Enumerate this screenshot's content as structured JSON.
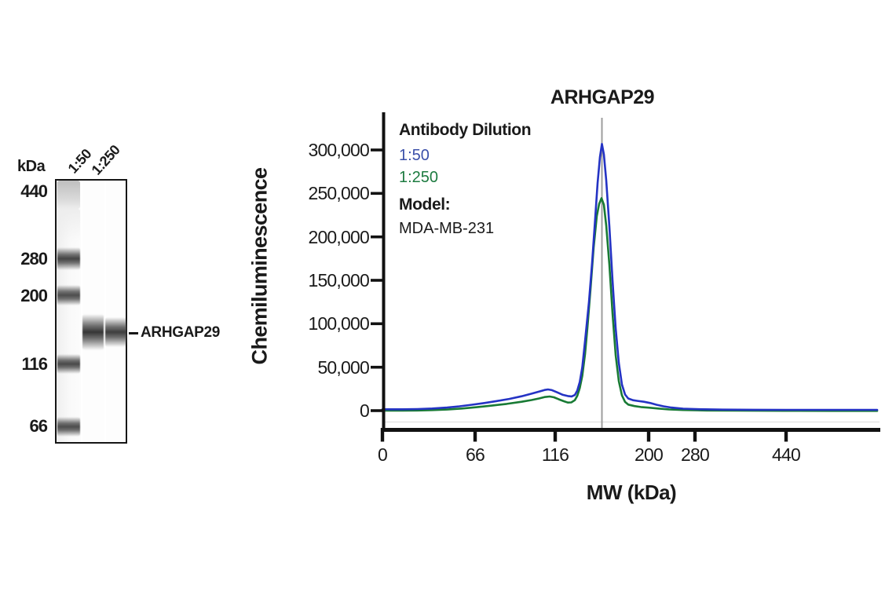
{
  "blot": {
    "kda_label": "kDa",
    "markers": [
      "440",
      "280",
      "200",
      "116",
      "66"
    ],
    "lanes": [
      "1:50",
      "1:250"
    ],
    "band_label": "ARHGAP29"
  },
  "chart": {
    "title": "ARHGAP29",
    "ylabel": "Chemiluminescence",
    "xlabel": "MW (kDa)",
    "y_tick_labels": [
      "300,000",
      "250,000",
      "200,000",
      "150,000",
      "100,000",
      "50,000",
      "0"
    ],
    "x_tick_labels": [
      "0",
      "66",
      "116",
      "200",
      "280",
      "440"
    ],
    "legend": {
      "heading": "Antibody Dilution",
      "items": [
        {
          "label": "1:50",
          "color": "#3a4fa9"
        },
        {
          "label": "1:250",
          "color": "#1d7b40"
        }
      ],
      "model_heading": "Model:",
      "model_value": "MDA-MB-231"
    }
  },
  "chart_data": {
    "type": "line",
    "title": "ARHGAP29",
    "xlabel": "MW (kDa)",
    "ylabel": "Chemiluminescence",
    "ylim": [
      0,
      330000
    ],
    "y_ticks": [
      0,
      50000,
      100000,
      150000,
      200000,
      250000,
      300000
    ],
    "x_axis": {
      "scale": "nonlinear-migration",
      "ticks": [
        {
          "label": "0",
          "pos": 0.0
        },
        {
          "label": "66",
          "pos": 0.186
        },
        {
          "label": "116",
          "pos": 0.348
        },
        {
          "label": "200",
          "pos": 0.536
        },
        {
          "label": "280",
          "pos": 0.629
        },
        {
          "label": "440",
          "pos": 0.812
        }
      ]
    },
    "peak_marker": {
      "pos": 0.4415,
      "kda_approx": 150
    },
    "series": [
      {
        "id": "d250",
        "name": "1:250",
        "color": "#187a34",
        "peak_value": 244000,
        "points": [
          [
            0.0,
            0
          ],
          [
            0.04,
            0
          ],
          [
            0.07,
            200
          ],
          [
            0.1,
            600
          ],
          [
            0.13,
            1300
          ],
          [
            0.16,
            2400
          ],
          [
            0.19,
            4000
          ],
          [
            0.22,
            5800
          ],
          [
            0.25,
            7800
          ],
          [
            0.28,
            10200
          ],
          [
            0.3,
            12200
          ],
          [
            0.315,
            14000
          ],
          [
            0.326,
            15600
          ],
          [
            0.3365,
            16300
          ],
          [
            0.345,
            15400
          ],
          [
            0.355,
            13000
          ],
          [
            0.365,
            10800
          ],
          [
            0.3729,
            9300
          ],
          [
            0.38,
            9500
          ],
          [
            0.387,
            12000
          ],
          [
            0.392,
            17000
          ],
          [
            0.397,
            26000
          ],
          [
            0.402,
            40000
          ],
          [
            0.4076,
            65000
          ],
          [
            0.4123,
            95000
          ],
          [
            0.4186,
            140000
          ],
          [
            0.425,
            188000
          ],
          [
            0.4313,
            224000
          ],
          [
            0.436,
            238000
          ],
          [
            0.4408,
            244500
          ],
          [
            0.4455,
            237000
          ],
          [
            0.4502,
            213000
          ],
          [
            0.4565,
            168000
          ],
          [
            0.4629,
            112000
          ],
          [
            0.4692,
            64000
          ],
          [
            0.4755,
            34000
          ],
          [
            0.4818,
            17500
          ],
          [
            0.4881,
            10000
          ],
          [
            0.4945,
            7000
          ],
          [
            0.5071,
            5200
          ],
          [
            0.5198,
            4200
          ],
          [
            0.5355,
            3400
          ],
          [
            0.5545,
            2400
          ],
          [
            0.5766,
            1400
          ],
          [
            0.6051,
            700
          ],
          [
            0.6525,
            200
          ],
          [
            0.7156,
            0
          ],
          [
            0.8104,
            -200
          ],
          [
            0.9052,
            -300
          ],
          [
            0.9953,
            -300
          ]
        ]
      },
      {
        "id": "d50",
        "name": "1:50",
        "color": "#2433c4",
        "peak_value": 307000,
        "points": [
          [
            0.0,
            1500
          ],
          [
            0.04,
            1500
          ],
          [
            0.07,
            1800
          ],
          [
            0.1,
            2400
          ],
          [
            0.13,
            3500
          ],
          [
            0.155,
            5000
          ],
          [
            0.18,
            6800
          ],
          [
            0.205,
            8800
          ],
          [
            0.23,
            11000
          ],
          [
            0.255,
            13500
          ],
          [
            0.28,
            16500
          ],
          [
            0.3,
            19500
          ],
          [
            0.315,
            22000
          ],
          [
            0.326,
            23800
          ],
          [
            0.333,
            24400
          ],
          [
            0.341,
            23600
          ],
          [
            0.352,
            21000
          ],
          [
            0.363,
            18200
          ],
          [
            0.373,
            16800
          ],
          [
            0.3807,
            16400
          ],
          [
            0.387,
            18000
          ],
          [
            0.392,
            23000
          ],
          [
            0.397,
            33000
          ],
          [
            0.402,
            50000
          ],
          [
            0.4076,
            80000
          ],
          [
            0.4155,
            125000
          ],
          [
            0.4218,
            170000
          ],
          [
            0.4281,
            222000
          ],
          [
            0.4329,
            262000
          ],
          [
            0.4376,
            292000
          ],
          [
            0.4415,
            307000
          ],
          [
            0.4455,
            295000
          ],
          [
            0.4502,
            265000
          ],
          [
            0.4565,
            212000
          ],
          [
            0.4629,
            150000
          ],
          [
            0.4692,
            95000
          ],
          [
            0.4755,
            55000
          ],
          [
            0.4818,
            30000
          ],
          [
            0.4881,
            18500
          ],
          [
            0.4945,
            14000
          ],
          [
            0.504,
            12000
          ],
          [
            0.5134,
            11200
          ],
          [
            0.5261,
            10200
          ],
          [
            0.5387,
            8800
          ],
          [
            0.5514,
            6800
          ],
          [
            0.5656,
            5000
          ],
          [
            0.5814,
            3500
          ],
          [
            0.6051,
            2300
          ],
          [
            0.6367,
            1600
          ],
          [
            0.6841,
            1200
          ],
          [
            0.7472,
            1000
          ],
          [
            0.8104,
            900
          ],
          [
            0.8894,
            900
          ],
          [
            0.9953,
            900
          ]
        ]
      }
    ]
  }
}
